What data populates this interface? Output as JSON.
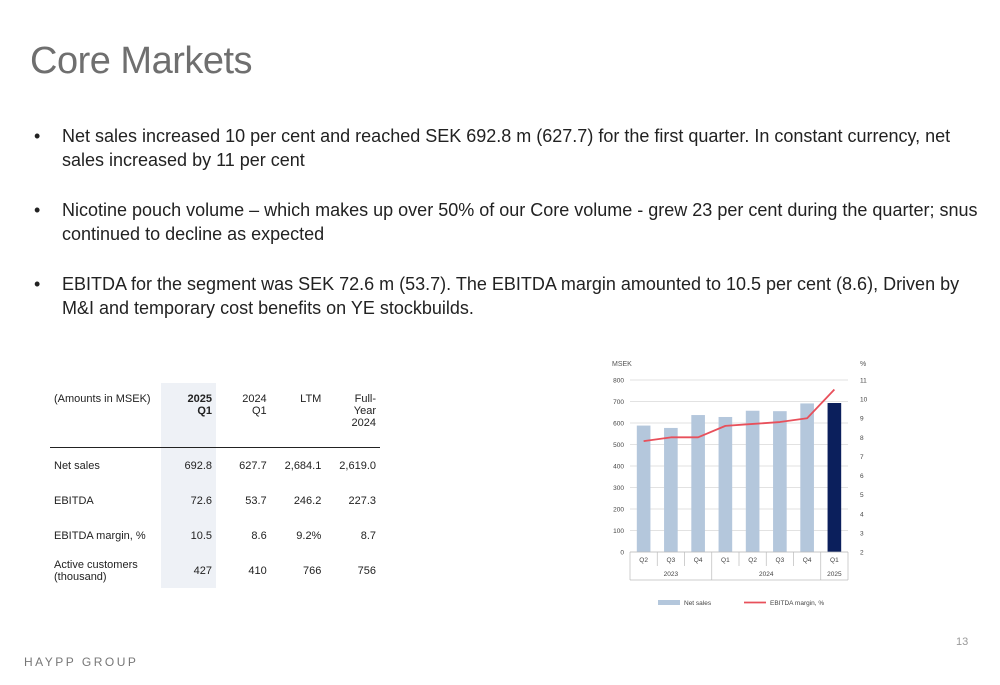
{
  "title": "Core Markets",
  "bullets": [
    "Net sales increased 10 per cent and reached SEK 692.8 m (627.7) for the first quarter. In constant currency, net sales increased by 11 per cent",
    "Nicotine pouch volume – which makes up over 50% of our Core volume -  grew 23 per cent during the quarter; snus continued to decline as expected",
    "EBITDA for the segment was SEK 72.6 m (53.7). The EBITDA margin amounted to 10.5 per cent (8.6), Driven by M&I and temporary cost benefits on YE stockbuilds."
  ],
  "bullet_marker": "•",
  "table": {
    "header": [
      "(Amounts in MSEK)",
      "2025\nQ1",
      "2024\nQ1",
      "LTM",
      "Full-\nYear\n2024"
    ],
    "rows": [
      [
        "Net sales",
        "692.8",
        "627.7",
        "2,684.1",
        "2,619.0"
      ],
      [
        "EBITDA",
        "72.6",
        "53.7",
        "246.2",
        "227.3"
      ],
      [
        "EBITDA margin, %",
        "10.5",
        "8.6",
        "9.2%",
        "8.7"
      ],
      [
        "Active customers\n(thousand)",
        "427",
        "410",
        "766",
        "756"
      ]
    ]
  },
  "chart_data": {
    "type": "bar",
    "categories": [
      "Q2",
      "Q3",
      "Q4",
      "Q1",
      "Q2",
      "Q3",
      "Q4",
      "Q1"
    ],
    "year_groups": [
      {
        "label": "2023",
        "span": 3
      },
      {
        "label": "2024",
        "span": 4
      },
      {
        "label": "2025",
        "span": 1
      }
    ],
    "series": [
      {
        "name": "Net sales",
        "type": "bar",
        "axis": "left",
        "values": [
          588,
          577,
          637,
          628,
          657,
          655,
          691,
          693
        ],
        "color": "#b4c7dc",
        "highlight_color": "#0b1f5c",
        "highlight_index": 7
      },
      {
        "name": "EBITDA margin, %",
        "type": "line",
        "axis": "right",
        "values": [
          7.8,
          8.0,
          8.0,
          8.6,
          8.7,
          8.8,
          9.0,
          10.5
        ],
        "color": "#e8505b"
      }
    ],
    "ylabel_left": "MSEK",
    "ylabel_right": "%",
    "ylim_left": [
      0,
      800
    ],
    "yticks_left": [
      0,
      100,
      200,
      300,
      400,
      500,
      600,
      700,
      800
    ],
    "ylim_right": [
      2,
      11
    ],
    "yticks_right": [
      2,
      3,
      4,
      5,
      6,
      7,
      8,
      9,
      10,
      11
    ],
    "grid": true,
    "legend_position": "bottom"
  },
  "footer": {
    "brand": "HAYPP GROUP",
    "page_number": "13"
  },
  "colors": {
    "title": "#6f6f6f",
    "table_highlight": "#eef1f6",
    "bar": "#b4c7dc",
    "bar_highlight": "#0b1f5c",
    "line": "#e8505b"
  }
}
